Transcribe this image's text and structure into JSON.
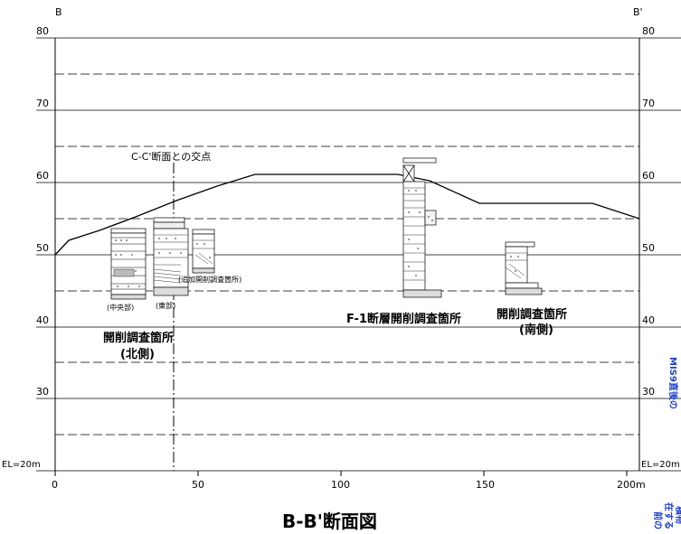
{
  "section": {
    "left_end": "B",
    "right_end": "B'",
    "title": "B-B'断面図",
    "cross_point_label": "C-C'断面との交点"
  },
  "axes": {
    "y_ticks_left": [
      "80",
      "70",
      "60",
      "50",
      "40",
      "30",
      "EL=20m"
    ],
    "y_ticks_right": [
      "80",
      "70",
      "60",
      "50",
      "40",
      "30",
      "EL=20m"
    ],
    "x_ticks": [
      "0",
      "50",
      "100",
      "150",
      "200m"
    ]
  },
  "labels": {
    "north_site_line1": "開削調査箇所",
    "north_site_line2": "(北側)",
    "central": "(中央部)",
    "east": "(東部)",
    "additional": "(追加開削調査箇所)",
    "f1_site": "F-1断層開削調査箇所",
    "south_site_line1": "開削調査箇所",
    "south_site_line2": "(南側)"
  },
  "side_note": {
    "text_vertical": "MIS9直後の",
    "bottom_line1": "前の",
    "bottom_line2": "在する",
    "bottom_line3": "積物",
    "color": "#1f3fbf"
  }
}
